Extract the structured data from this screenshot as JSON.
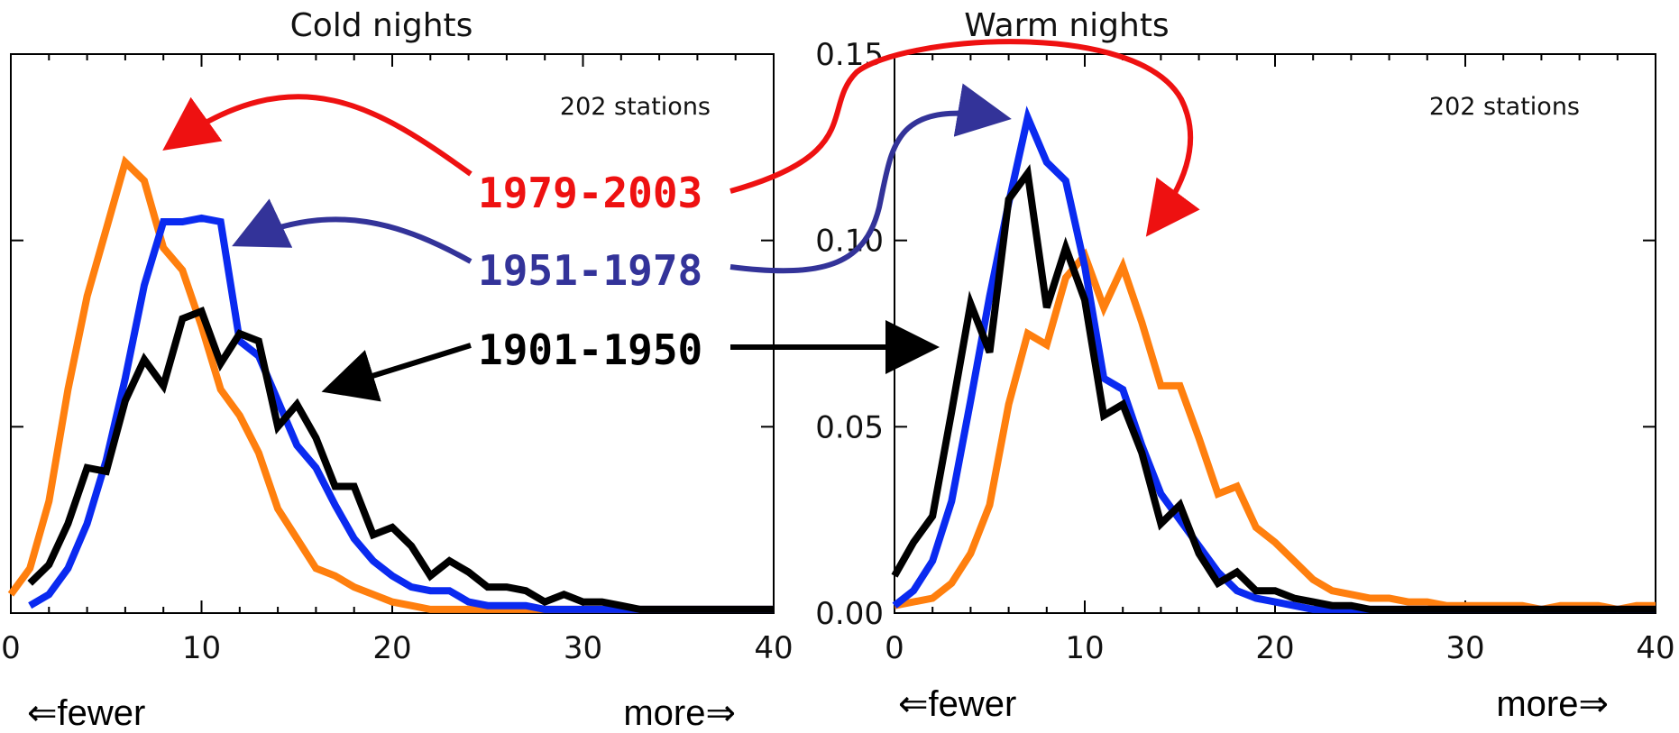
{
  "chart_data": [
    {
      "type": "line",
      "title": "Cold nights",
      "annotation": "202 stations",
      "xlim": [
        0,
        40
      ],
      "ylim": [
        0,
        0.15
      ],
      "xticks": [
        "0",
        "10",
        "20",
        "30",
        "40"
      ],
      "x_direction_labels": {
        "left": "⇐fewer",
        "right": "more⇒"
      },
      "series": [
        {
          "name": "1901-1950",
          "color": "#000000",
          "x": [
            1,
            2,
            3,
            4,
            5,
            6,
            7,
            8,
            9,
            10,
            11,
            12,
            13,
            14,
            15,
            16,
            17,
            18,
            19,
            20,
            21,
            22,
            23,
            24,
            25,
            26,
            27,
            28,
            29,
            30,
            31,
            32,
            33,
            34,
            35,
            36,
            37,
            38,
            39,
            40
          ],
          "y": [
            0.008,
            0.013,
            0.024,
            0.039,
            0.038,
            0.057,
            0.068,
            0.061,
            0.079,
            0.081,
            0.067,
            0.075,
            0.073,
            0.05,
            0.056,
            0.047,
            0.034,
            0.034,
            0.021,
            0.023,
            0.018,
            0.01,
            0.014,
            0.011,
            0.007,
            0.007,
            0.006,
            0.003,
            0.005,
            0.003,
            0.003,
            0.002,
            0.001,
            0.001,
            0.001,
            0.001,
            0.001,
            0.001,
            0.001,
            0.001
          ]
        },
        {
          "name": "1951-1978",
          "color": "#0a2af0",
          "x": [
            1,
            2,
            3,
            4,
            5,
            6,
            7,
            8,
            9,
            10,
            11,
            12,
            13,
            14,
            15,
            16,
            17,
            18,
            19,
            20,
            21,
            22,
            23,
            24,
            25,
            26,
            27,
            28,
            29,
            30,
            31,
            32,
            33,
            34,
            35,
            36,
            37,
            38,
            39,
            40
          ],
          "y": [
            0.002,
            0.005,
            0.012,
            0.024,
            0.041,
            0.063,
            0.088,
            0.105,
            0.105,
            0.106,
            0.105,
            0.073,
            0.069,
            0.057,
            0.045,
            0.039,
            0.029,
            0.02,
            0.014,
            0.01,
            0.007,
            0.006,
            0.006,
            0.003,
            0.002,
            0.002,
            0.002,
            0.001,
            0.001,
            0.001,
            0.001,
            0.001,
            0.001,
            0.001,
            0.001,
            0.001,
            0.001,
            0.001,
            0.001,
            0.001
          ]
        },
        {
          "name": "1979-2003",
          "color": "#ff7f0e",
          "x": [
            0,
            1,
            2,
            3,
            4,
            5,
            6,
            7,
            8,
            9,
            10,
            11,
            12,
            13,
            14,
            15,
            16,
            17,
            18,
            19,
            20,
            21,
            22,
            23,
            24,
            25,
            26,
            27,
            28,
            29,
            30,
            31,
            32,
            33,
            34,
            35,
            36,
            37,
            38,
            39,
            40
          ],
          "y": [
            0.005,
            0.012,
            0.03,
            0.06,
            0.085,
            0.103,
            0.121,
            0.116,
            0.098,
            0.092,
            0.077,
            0.06,
            0.053,
            0.043,
            0.028,
            0.02,
            0.012,
            0.01,
            0.007,
            0.005,
            0.003,
            0.002,
            0.001,
            0.001,
            0.001,
            0.001,
            0.001,
            0.001,
            0.001,
            0.001,
            0.001,
            0.001,
            0.001,
            0.001,
            0.001,
            0.001,
            0.001,
            0.001,
            0.001,
            0.001,
            0.001
          ]
        }
      ]
    },
    {
      "type": "line",
      "title": "Warm nights",
      "annotation": "202 stations",
      "xlim": [
        0,
        40
      ],
      "ylim": [
        0,
        0.15
      ],
      "xticks": [
        "0",
        "10",
        "20",
        "30",
        "40"
      ],
      "yticks": [
        "0.00",
        "0.05",
        "0.10",
        "0.15"
      ],
      "x_direction_labels": {
        "left": "⇐fewer",
        "right": "more⇒"
      },
      "series": [
        {
          "name": "1901-1950",
          "color": "#000000",
          "x": [
            0,
            1,
            2,
            3,
            4,
            5,
            6,
            7,
            8,
            9,
            10,
            11,
            12,
            13,
            14,
            15,
            16,
            17,
            18,
            19,
            20,
            21,
            22,
            23,
            24,
            25,
            26,
            27,
            28,
            29,
            30,
            31,
            32,
            33,
            34,
            35,
            36,
            37,
            38,
            39,
            40
          ],
          "y": [
            0.01,
            0.019,
            0.026,
            0.054,
            0.083,
            0.07,
            0.111,
            0.118,
            0.082,
            0.098,
            0.084,
            0.053,
            0.056,
            0.043,
            0.024,
            0.029,
            0.016,
            0.008,
            0.011,
            0.006,
            0.006,
            0.004,
            0.003,
            0.002,
            0.002,
            0.001,
            0.001,
            0.001,
            0.001,
            0.001,
            0.001,
            0.001,
            0.001,
            0.001,
            0.001,
            0.001,
            0.001,
            0.001,
            0.001,
            0.001,
            0.001
          ]
        },
        {
          "name": "1951-1978",
          "color": "#0a2af0",
          "x": [
            0,
            1,
            2,
            3,
            4,
            5,
            6,
            7,
            8,
            9,
            10,
            11,
            12,
            13,
            14,
            15,
            16,
            17,
            18,
            19,
            20,
            21,
            22,
            23,
            24,
            25,
            26,
            27,
            28,
            29,
            30,
            31,
            32,
            33,
            34,
            35,
            36,
            37,
            38,
            39,
            40
          ],
          "y": [
            0.002,
            0.006,
            0.014,
            0.03,
            0.057,
            0.085,
            0.11,
            0.133,
            0.121,
            0.116,
            0.093,
            0.063,
            0.06,
            0.045,
            0.032,
            0.025,
            0.018,
            0.011,
            0.006,
            0.004,
            0.003,
            0.002,
            0.001,
            0.001,
            0.001,
            0.001,
            0.001,
            0.001,
            0.001,
            0.001,
            0.001,
            0.001,
            0.001,
            0.001,
            0.001,
            0.001,
            0.001,
            0.001,
            0.001,
            0.001,
            0.001
          ]
        },
        {
          "name": "1979-2003",
          "color": "#ff7f0e",
          "x": [
            0,
            1,
            2,
            3,
            4,
            5,
            6,
            7,
            8,
            9,
            10,
            11,
            12,
            13,
            14,
            15,
            16,
            17,
            18,
            19,
            20,
            21,
            22,
            23,
            24,
            25,
            26,
            27,
            28,
            29,
            30,
            31,
            32,
            33,
            34,
            35,
            36,
            37,
            38,
            39,
            40
          ],
          "y": [
            0.002,
            0.003,
            0.004,
            0.008,
            0.016,
            0.029,
            0.056,
            0.075,
            0.072,
            0.09,
            0.096,
            0.082,
            0.093,
            0.078,
            0.061,
            0.061,
            0.047,
            0.032,
            0.034,
            0.023,
            0.019,
            0.014,
            0.009,
            0.006,
            0.005,
            0.004,
            0.004,
            0.003,
            0.003,
            0.002,
            0.002,
            0.002,
            0.002,
            0.002,
            0.001,
            0.002,
            0.002,
            0.002,
            0.001,
            0.002,
            0.002
          ]
        }
      ]
    }
  ],
  "legend": [
    {
      "label": "1979-2003",
      "color": "#ee1111"
    },
    {
      "label": "1951-1978",
      "color": "#333399"
    },
    {
      "label": "1901-1950",
      "color": "#000000"
    }
  ]
}
